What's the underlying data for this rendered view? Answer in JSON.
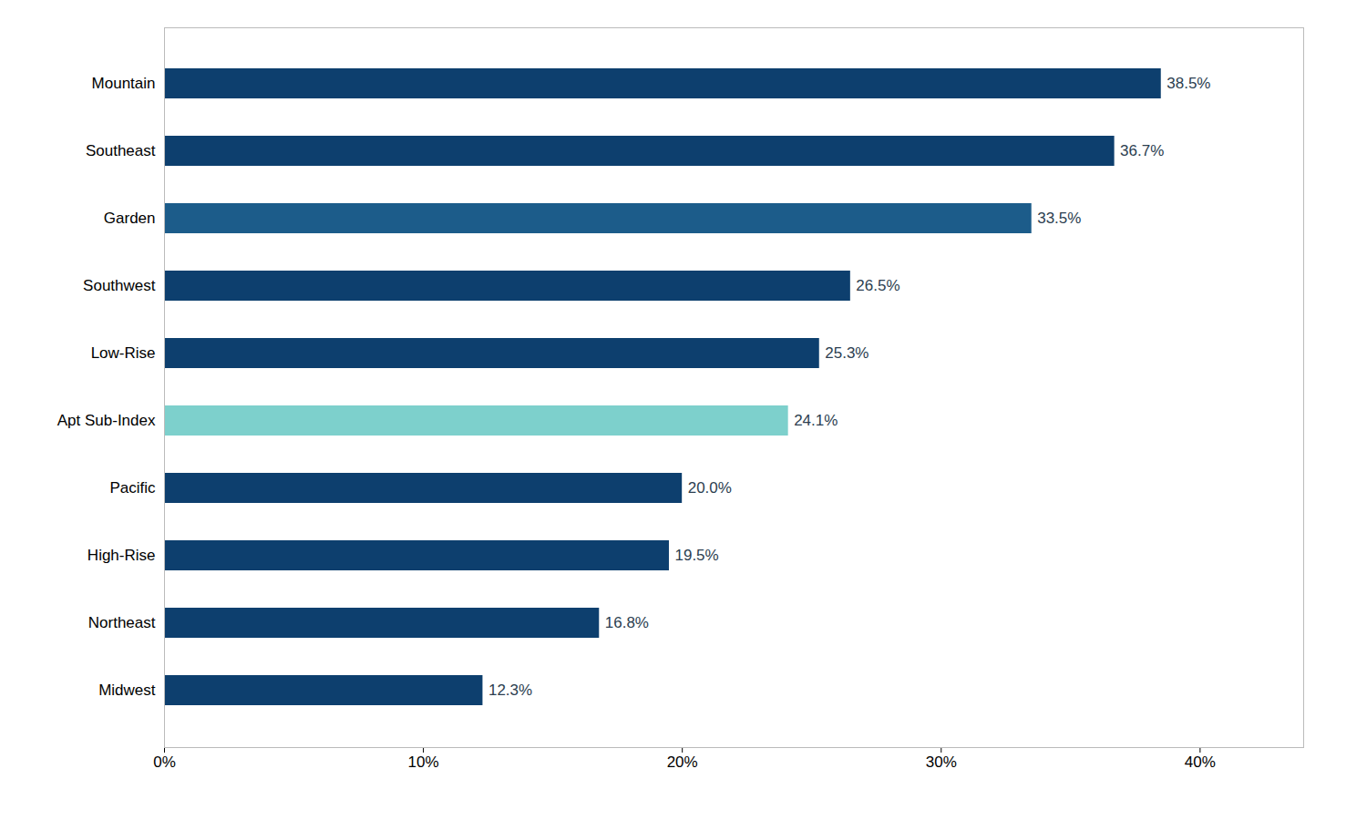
{
  "chart_data": {
    "type": "bar",
    "orientation": "horizontal",
    "categories": [
      "Midwest",
      "Northeast",
      "High-Rise",
      "Pacific",
      "Apt Sub-Index",
      "Low-Rise",
      "Southwest",
      "Garden",
      "Southeast",
      "Mountain"
    ],
    "values": [
      12.3,
      16.8,
      19.5,
      20.0,
      24.1,
      25.3,
      26.5,
      33.5,
      36.7,
      38.5
    ],
    "value_labels": [
      "12.3%",
      "16.8%",
      "19.5%",
      "20.0%",
      "24.1%",
      "25.3%",
      "26.5%",
      "33.5%",
      "36.7%",
      "38.5%"
    ],
    "colors": [
      "#0d3f6e",
      "#0d3f6e",
      "#0d3f6e",
      "#0d3f6e",
      "#7dd0cc",
      "#0d3f6e",
      "#0d3f6e",
      "#1c5c8a",
      "#0d3f6e",
      "#0d3f6e"
    ],
    "xlim": [
      0,
      44
    ],
    "xticks": [
      {
        "value": 0,
        "label": "0%"
      },
      {
        "value": 10,
        "label": "10%"
      },
      {
        "value": 20,
        "label": "20%"
      },
      {
        "value": 30,
        "label": "30%"
      },
      {
        "value": 40,
        "label": "40%"
      }
    ],
    "data_labels": true,
    "grid": false
  }
}
